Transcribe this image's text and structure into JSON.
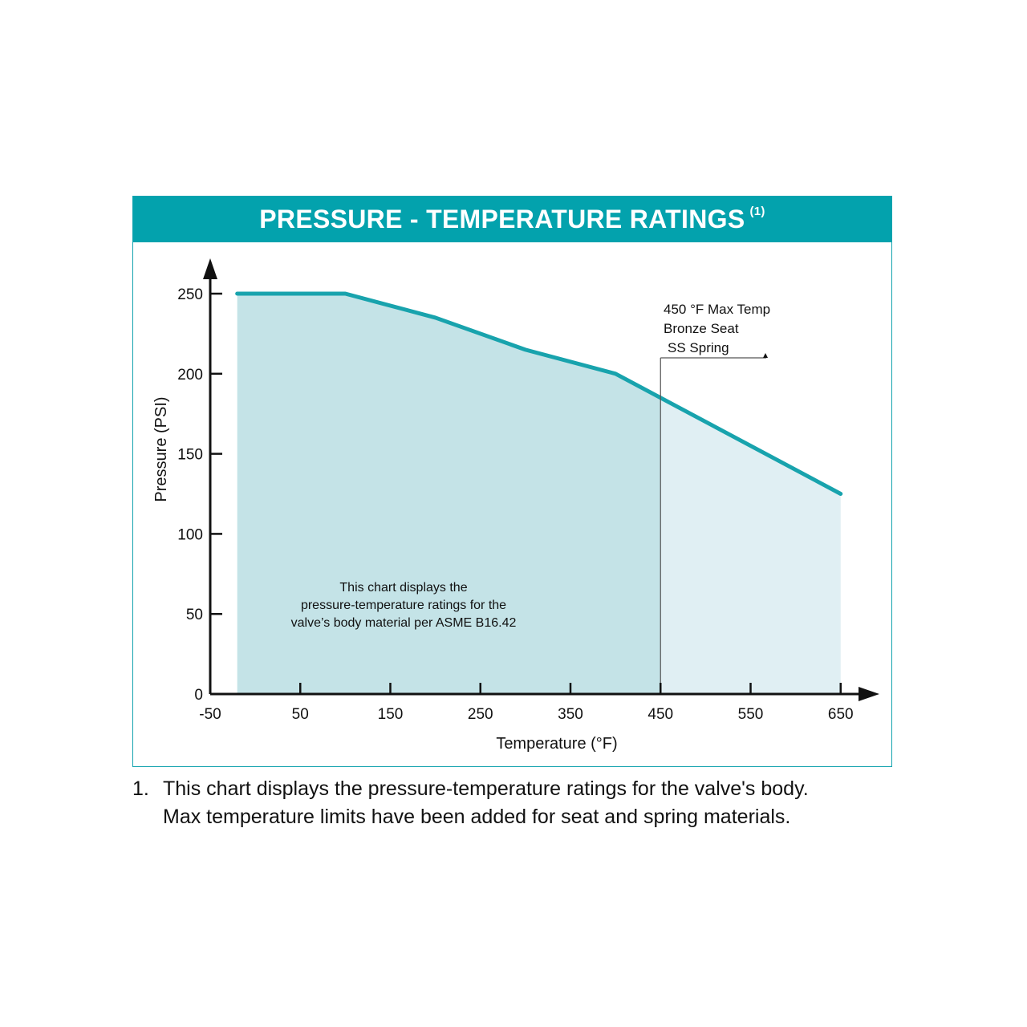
{
  "header": {
    "title": "PRESSURE - TEMPERATURE RATINGS",
    "footnote_marker": "(1)"
  },
  "chart_data": {
    "type": "area",
    "xlabel": "Temperature (°F)",
    "ylabel": "Pressure (PSI)",
    "xlim": [
      -50,
      680
    ],
    "ylim": [
      0,
      250
    ],
    "x_ticks": [
      -50,
      50,
      150,
      250,
      350,
      450,
      550,
      650
    ],
    "y_ticks": [
      0,
      50,
      100,
      150,
      200,
      250
    ],
    "series": [
      {
        "x": [
          -20,
          100,
          200,
          300,
          400,
          650
        ],
        "y": [
          250,
          250,
          235,
          215,
          200,
          125
        ]
      }
    ],
    "max_temp_marker": {
      "x": 450,
      "lines": [
        "450 °F Max Temp",
        "Bronze Seat",
        "SS Spring"
      ]
    },
    "annotation_lines": [
      "This chart displays the",
      "pressure-temperature ratings for the",
      "valve’s body material per ASME B16.42"
    ],
    "colors": {
      "line": "#18a3ad",
      "fill_rated": "#c4e3e7",
      "fill_beyond": "#e0eff3",
      "axis": "#111111"
    }
  },
  "footnote": {
    "number": "1.",
    "lines": [
      "This chart displays the pressure-temperature ratings for the valve's body.",
      "Max temperature limits have been added for seat and spring materials."
    ]
  }
}
